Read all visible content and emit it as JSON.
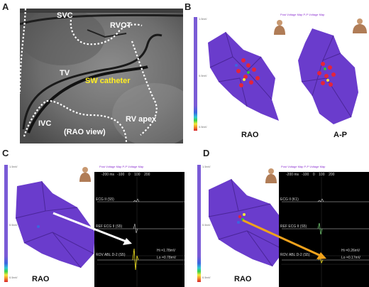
{
  "panels": {
    "a": {
      "label": "A",
      "svc": "SVC",
      "rvot": "RVOT",
      "tv": "TV",
      "sw_catheter": "SW catheter",
      "rv_apex": "RV apex",
      "ivc": "IVC",
      "rao_view": "(RAO view)"
    },
    "b": {
      "label": "B",
      "view_left": "RAO",
      "view_right": "A-P",
      "map_title": "Post Voltage Map  P-P Voltage Map"
    },
    "c": {
      "label": "C",
      "view": "RAO",
      "map_title": "Post Voltage Map  P-P Voltage Map"
    },
    "d": {
      "label": "D",
      "view": "RAO",
      "map_title": "Post Voltage Map  P-P Voltage Map"
    }
  },
  "ecg": {
    "scale_ticks": [
      "-200 ms",
      "-100",
      "0",
      "100",
      "200"
    ],
    "lead_1": "ECG II (S5)",
    "lead_2": "REF ECG II (S5)",
    "lead_3": "ROV ABL D-2 (S5)",
    "hi_c": "Hi =1.78mV",
    "lo_c": "Lo =0.78mV",
    "lead_1_d": "ECG II (K1)",
    "lead_2_d": "REF ECG II (S5)",
    "lead_3_d": "ROV ABL D-2 (S5)",
    "hi_d": "Hi =0.26mV",
    "lo_d": "Lo =0.17mV"
  },
  "colorbar": {
    "top": "1.5mV",
    "mid": "0.5mV",
    "bottom": "0.5mV"
  },
  "colors": {
    "mesh": "#6a3ccc",
    "mesh_dark": "#4b2699",
    "arrow_c": "#ffffff",
    "arrow_d": "#f0a21c",
    "catheter_outline": "#ffffff",
    "sw_label": "#ffee22"
  }
}
